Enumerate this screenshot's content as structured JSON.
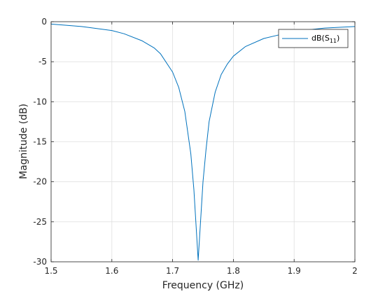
{
  "chart_data": {
    "type": "line",
    "xlabel": "Frequency (GHz)",
    "ylabel": "Magnitude (dB)",
    "xlim": [
      1.5,
      2.0
    ],
    "ylim": [
      -30,
      0
    ],
    "x_ticks": [
      1.5,
      1.6,
      1.7,
      1.8,
      1.9,
      2.0
    ],
    "x_tick_labels": [
      "1.5",
      "1.6",
      "1.7",
      "1.8",
      "1.9",
      "2"
    ],
    "y_ticks": [
      0,
      -5,
      -10,
      -15,
      -20,
      -25,
      -30
    ],
    "y_tick_labels": [
      "0",
      "-5",
      "-10",
      "-15",
      "-20",
      "-25",
      "-30"
    ],
    "grid": true,
    "legend_position": "top-right",
    "series": [
      {
        "name": "dB(S11)",
        "legend_main": "dB(S",
        "legend_sub": "11",
        "legend_close": ")",
        "color": "#0072BD",
        "x": [
          1.5,
          1.55,
          1.6,
          1.62,
          1.65,
          1.67,
          1.68,
          1.7,
          1.71,
          1.72,
          1.73,
          1.735,
          1.742,
          1.75,
          1.755,
          1.76,
          1.77,
          1.78,
          1.79,
          1.8,
          1.82,
          1.85,
          1.9,
          1.95,
          2.0
        ],
        "y": [
          -0.3,
          -0.6,
          -1.1,
          -1.5,
          -2.4,
          -3.3,
          -4.0,
          -6.3,
          -8.2,
          -11.2,
          -16.5,
          -21.0,
          -29.8,
          -20.0,
          -16.0,
          -12.5,
          -8.8,
          -6.6,
          -5.3,
          -4.3,
          -3.1,
          -2.1,
          -1.2,
          -0.8,
          -0.6
        ]
      }
    ]
  }
}
